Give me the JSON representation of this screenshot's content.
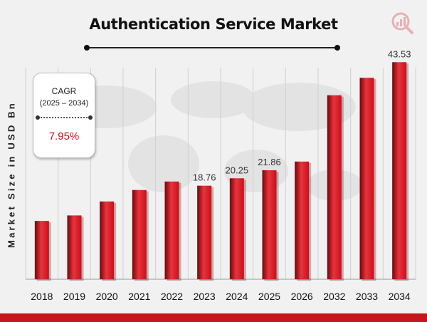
{
  "title": "Authentication Service Market",
  "y_axis_label": "Market Size in USD Bn",
  "cagr_box": {
    "label": "CAGR",
    "period": "(2025 – 2034)",
    "value": "7.95%"
  },
  "colors": {
    "bar": "#c8101a",
    "bar_dark": "#7d0005",
    "bar_light": "#e8343c",
    "accent": "#d0101a",
    "footer": "#c4161c"
  },
  "chart_data": {
    "type": "bar",
    "title": "Authentication Service Market",
    "xlabel": "",
    "ylabel": "Market Size in USD Bn",
    "categories": [
      "2018",
      "2019",
      "2020",
      "2021",
      "2022",
      "2023",
      "2024",
      "2025",
      "2026",
      "2032",
      "2033",
      "2034"
    ],
    "values": [
      11.7,
      12.8,
      15.6,
      17.9,
      19.6,
      18.76,
      20.25,
      21.86,
      23.6,
      36.9,
      40.4,
      43.53
    ],
    "data_labels": [
      "",
      "",
      "",
      "",
      "",
      "18.76",
      "20.25",
      "21.86",
      "",
      "",
      "",
      "43.53"
    ],
    "ylim": [
      0,
      50
    ],
    "grid": "vertical",
    "legend": "none"
  }
}
